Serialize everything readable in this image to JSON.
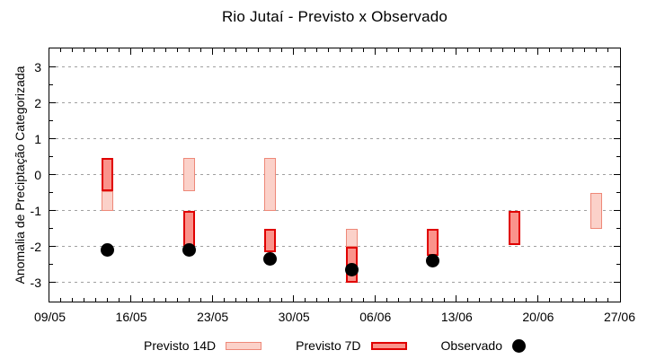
{
  "chart_data": {
    "type": "bar",
    "subtype": "floating-range-bars-with-scatter",
    "title": "Rio Jutaí - Previsto x Observado",
    "ylabel": "Anomalia de Preciptação Categorizada",
    "xlabel": "",
    "ylim": [
      -3.5,
      3.5
    ],
    "y_major_ticks": [
      3,
      2,
      1,
      0,
      -1,
      -2,
      -3
    ],
    "y_minor_tick_step": 0.5,
    "grid": "dashed horizontal at integer y values",
    "x_axis": {
      "days_span": 49,
      "minor_tick_step_days": 1,
      "major_ticks": [
        {
          "day": 0,
          "label": "09/05"
        },
        {
          "day": 7,
          "label": "16/05"
        },
        {
          "day": 14,
          "label": "23/05"
        },
        {
          "day": 21,
          "label": "30/05"
        },
        {
          "day": 28,
          "label": "06/06"
        },
        {
          "day": 35,
          "label": "13/06"
        },
        {
          "day": 42,
          "label": "20/06"
        },
        {
          "day": 49,
          "label": "27/06"
        }
      ]
    },
    "series": [
      {
        "name": "Previsto 14D",
        "type": "range_bar",
        "color_fill": "#fbd1c9",
        "color_border": "#ee8878",
        "bars": [
          {
            "date": "14/05",
            "day": 5,
            "high": -0.45,
            "low": -1.0
          },
          {
            "date": "21/05",
            "day": 12,
            "high": 0.45,
            "low": -0.45
          },
          {
            "date": "28/05",
            "day": 19,
            "high": 0.45,
            "low": -1.0
          },
          {
            "date": "04/06",
            "day": 26,
            "high": -1.5,
            "low": -2.0
          },
          {
            "date": "25/06",
            "day": 47,
            "high": -0.5,
            "low": -1.5
          }
        ]
      },
      {
        "name": "Previsto 7D",
        "type": "range_bar",
        "color_fill": "#fa938b",
        "color_border": "#e00000",
        "bars": [
          {
            "date": "14/05",
            "day": 5,
            "high": 0.45,
            "low": -0.45
          },
          {
            "date": "21/05",
            "day": 12,
            "high": -1.0,
            "low": -2.0
          },
          {
            "date": "28/05",
            "day": 19,
            "high": -1.5,
            "low": -2.15
          },
          {
            "date": "04/06",
            "day": 26,
            "high": -2.0,
            "low": -3.0
          },
          {
            "date": "11/06",
            "day": 33,
            "high": -1.5,
            "low": -2.25
          },
          {
            "date": "18/06",
            "day": 40,
            "high": -1.0,
            "low": -1.95
          }
        ]
      },
      {
        "name": "Observado",
        "type": "scatter",
        "color": "#000000",
        "points": [
          {
            "date": "14/05",
            "day": 5,
            "value": -2.1
          },
          {
            "date": "21/05",
            "day": 12,
            "value": -2.1
          },
          {
            "date": "28/05",
            "day": 19,
            "value": -2.35
          },
          {
            "date": "04/06",
            "day": 26,
            "value": -2.65
          },
          {
            "date": "11/06",
            "day": 33,
            "value": -2.4
          }
        ]
      }
    ],
    "legend": [
      {
        "label": "Previsto 14D",
        "swatch": "light-pink-bar"
      },
      {
        "label": "Previsto 7D",
        "swatch": "salmon-red-bar"
      },
      {
        "label": "Observado",
        "swatch": "black-dot"
      }
    ],
    "legend_position": "bottom-center",
    "colors": {
      "grid": "#a0a0a0",
      "axis": "#000000",
      "background": "#ffffff"
    }
  }
}
